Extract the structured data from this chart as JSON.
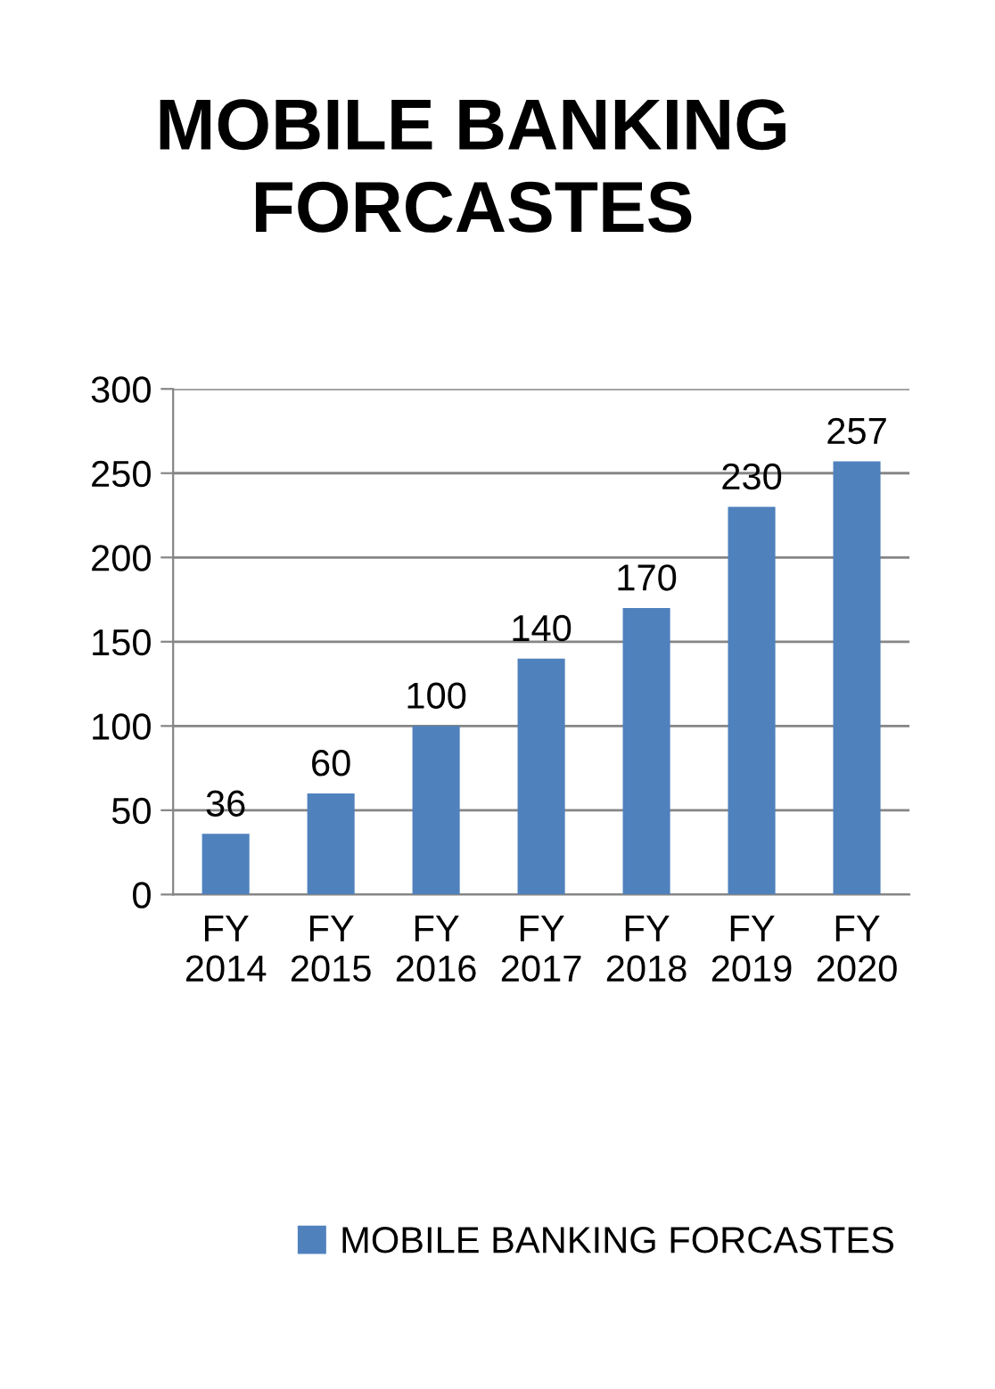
{
  "chart_data": {
    "type": "bar",
    "title": "MOBILE BANKING\nFORCASTES",
    "categories": [
      "FY\n2014",
      "FY\n2015",
      "FY\n2016",
      "FY\n2017",
      "FY\n2018",
      "FY\n2019",
      "FY\n2020"
    ],
    "series": [
      {
        "name": "MOBILE BANKING FORCASTES",
        "color": "#4f81bd",
        "values": [
          36,
          60,
          100,
          140,
          170,
          230,
          257
        ]
      }
    ],
    "ylim": [
      0,
      300
    ],
    "yticks": [
      0,
      50,
      100,
      150,
      200,
      250,
      300
    ],
    "grid": "y",
    "legend": "bottom",
    "data_labels": true
  }
}
